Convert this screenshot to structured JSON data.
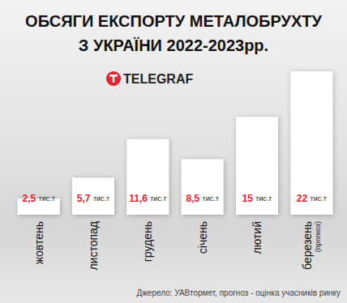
{
  "chart_data": {
    "type": "bar",
    "title": "ОБСЯГИ ЕКСПОРТУ МЕТАЛОБРУХТУ\nЗ УКРАЇНИ 2022-2023рр.",
    "logo": "TELEGRAF",
    "categories": [
      "жовтень",
      "листопад",
      "грудень",
      "січень",
      "лютий",
      "березень"
    ],
    "values": [
      2.5,
      5.7,
      11.6,
      8.5,
      15,
      22
    ],
    "value_labels": [
      "2,5 тис.т",
      "5,7 тис.т",
      "11,6 тис.т",
      "8,5 тис.т",
      "15 тис.т",
      "22 тис.т"
    ],
    "annotations": [
      {
        "category": "березень",
        "text": "(прогноз)"
      }
    ],
    "source": "Джерело: УАВтормет, прогноз - оцінка учасників ринку",
    "color": "#ffffff",
    "ylim": [
      0,
      22
    ],
    "grid": false,
    "data_labels": true,
    "tick_labels": "x"
  }
}
